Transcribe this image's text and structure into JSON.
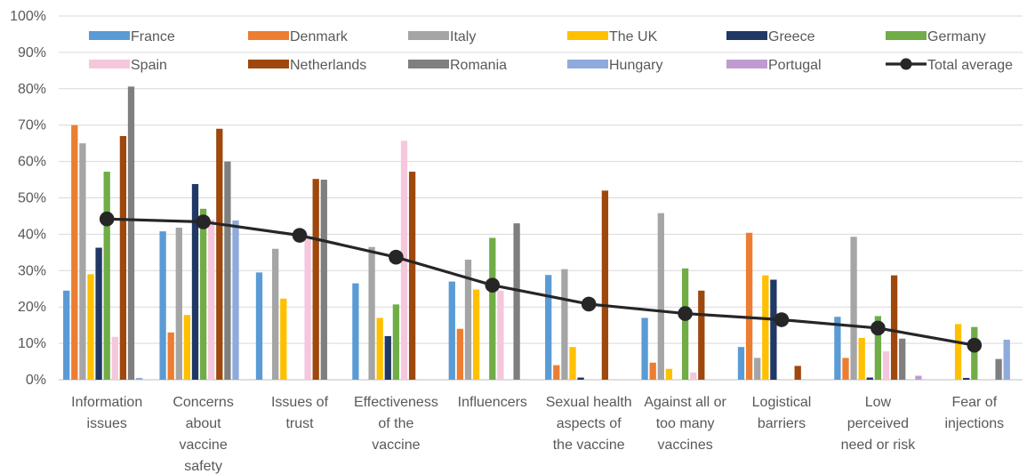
{
  "chart_data": {
    "type": "bar",
    "y_axis": {
      "min": 0,
      "max": 100,
      "step": 10,
      "unit": "%"
    },
    "grid": "horizontal",
    "legend_position": "top",
    "categories": [
      [
        "Information",
        "issues"
      ],
      [
        "Concerns",
        "about",
        "vaccine",
        "safety"
      ],
      [
        "Issues of",
        "trust"
      ],
      [
        "Effectiveness",
        "of the",
        "vaccine"
      ],
      [
        "Influencers"
      ],
      [
        "Sexual health",
        "aspects of",
        "the vaccine"
      ],
      [
        "Against all or",
        "too many",
        "vaccines"
      ],
      [
        "Logistical",
        "barriers"
      ],
      [
        "Low",
        "perceived",
        "need or risk"
      ],
      [
        "Fear of",
        "injections"
      ]
    ],
    "series": [
      {
        "name": "France",
        "color": "#5B9BD5",
        "values": [
          24.5,
          40.8,
          29.5,
          26.5,
          27,
          28.8,
          17,
          9,
          17.3,
          null
        ]
      },
      {
        "name": "Denmark",
        "color": "#ED7D31",
        "values": [
          70,
          13,
          null,
          null,
          14,
          4,
          4.7,
          40.4,
          6,
          null
        ]
      },
      {
        "name": "Italy",
        "color": "#A5A5A5",
        "values": [
          65,
          41.8,
          36,
          36.5,
          33,
          30.4,
          45.8,
          6,
          39.3,
          null
        ]
      },
      {
        "name": "The UK",
        "color": "#FFC000",
        "values": [
          29,
          17.8,
          22.3,
          17,
          24.8,
          9,
          3,
          28.7,
          11.5,
          15.3
        ]
      },
      {
        "name": "Greece",
        "color": "#203864",
        "values": [
          36.3,
          53.8,
          null,
          12,
          null,
          0.6,
          null,
          27.5,
          0.6,
          0.5
        ]
      },
      {
        "name": "Germany",
        "color": "#70AD47",
        "values": [
          57.2,
          47,
          null,
          20.7,
          39,
          null,
          30.6,
          null,
          17.5,
          14.5
        ]
      },
      {
        "name": "Spain",
        "color": "#F4C7DC",
        "values": [
          11.8,
          44,
          39,
          65.7,
          24.5,
          null,
          2,
          null,
          7.8,
          null
        ]
      },
      {
        "name": "Netherlands",
        "color": "#9E480E",
        "values": [
          67,
          69,
          55.2,
          57.2,
          null,
          52,
          24.5,
          3.8,
          28.7,
          null
        ]
      },
      {
        "name": "Romania",
        "color": "#7F7F7F",
        "values": [
          80.6,
          60,
          55,
          null,
          43,
          null,
          null,
          null,
          11.3,
          5.7
        ]
      },
      {
        "name": "Hungary",
        "color": "#8FAADC",
        "values": [
          0.5,
          43.8,
          null,
          null,
          null,
          null,
          null,
          null,
          null,
          11
        ]
      },
      {
        "name": "Portugal",
        "color": "#C09BD0",
        "values": [
          null,
          null,
          null,
          null,
          null,
          null,
          null,
          null,
          1.1,
          null
        ]
      },
      {
        "name": "Total average",
        "type": "line",
        "color": "#262626",
        "values": [
          44.2,
          43.4,
          39.7,
          33.7,
          26,
          20.8,
          18.2,
          16.5,
          14.2,
          9.5
        ]
      }
    ]
  }
}
